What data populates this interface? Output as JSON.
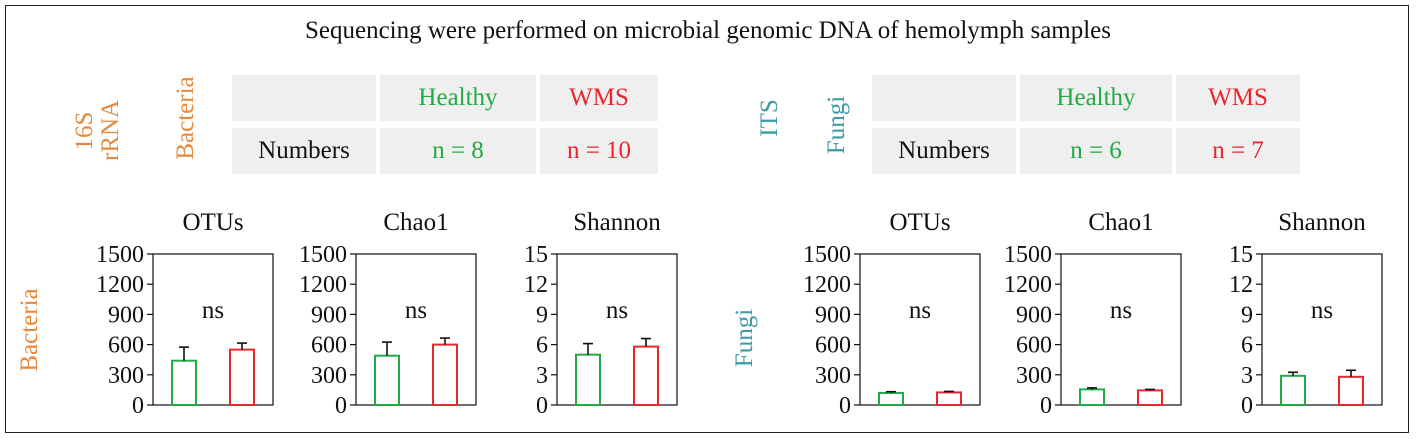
{
  "title": "Sequencing were performed on microbial genomic DNA of hemolymph samples",
  "colors": {
    "healthy": "#22aa44",
    "wms": "#e8262c",
    "bacteria": "#e8883a",
    "fungi": "#3a9aa6"
  },
  "tables": [
    {
      "gene": "16S rRNA",
      "kingdom": "Bacteria",
      "headers": [
        "",
        "Healthy",
        "WMS"
      ],
      "row_label": "Numbers",
      "healthy_n": "n = 8",
      "wms_n": "n = 10"
    },
    {
      "gene": "ITS",
      "kingdom": "Fungi",
      "headers": [
        "",
        "Healthy",
        "WMS"
      ],
      "row_label": "Numbers",
      "healthy_n": "n = 6",
      "wms_n": "n = 7"
    }
  ],
  "row_labels": {
    "bacteria": "Bacteria",
    "fungi": "Fungi"
  },
  "chart_data": [
    {
      "type": "bar",
      "group": "Bacteria",
      "title": "OTUs",
      "categories": [
        "Healthy",
        "WMS"
      ],
      "values": [
        440,
        550
      ],
      "errors": [
        135,
        65
      ],
      "ylim": [
        0,
        1500
      ],
      "yticks": [
        0,
        300,
        600,
        900,
        1200,
        1500
      ],
      "annotation": "ns"
    },
    {
      "type": "bar",
      "group": "Bacteria",
      "title": "Chao1",
      "categories": [
        "Healthy",
        "WMS"
      ],
      "values": [
        490,
        600
      ],
      "errors": [
        135,
        65
      ],
      "ylim": [
        0,
        1500
      ],
      "yticks": [
        0,
        300,
        600,
        900,
        1200,
        1500
      ],
      "annotation": "ns"
    },
    {
      "type": "bar",
      "group": "Bacteria",
      "title": "Shannon",
      "categories": [
        "Healthy",
        "WMS"
      ],
      "values": [
        5.0,
        5.8
      ],
      "errors": [
        1.1,
        0.8
      ],
      "ylim": [
        0,
        15
      ],
      "yticks": [
        0,
        3,
        6,
        9,
        12,
        15
      ],
      "annotation": "ns"
    },
    {
      "type": "bar",
      "group": "Fungi",
      "title": "OTUs",
      "categories": [
        "Healthy",
        "WMS"
      ],
      "values": [
        120,
        125
      ],
      "errors": [
        12,
        10
      ],
      "ylim": [
        0,
        1500
      ],
      "yticks": [
        0,
        300,
        600,
        900,
        1200,
        1500
      ],
      "annotation": "ns"
    },
    {
      "type": "bar",
      "group": "Fungi",
      "title": "Chao1",
      "categories": [
        "Healthy",
        "WMS"
      ],
      "values": [
        155,
        145
      ],
      "errors": [
        15,
        10
      ],
      "ylim": [
        0,
        1500
      ],
      "yticks": [
        0,
        300,
        600,
        900,
        1200,
        1500
      ],
      "annotation": "ns"
    },
    {
      "type": "bar",
      "group": "Fungi",
      "title": "Shannon",
      "categories": [
        "Healthy",
        "WMS"
      ],
      "values": [
        2.9,
        2.8
      ],
      "errors": [
        0.35,
        0.65
      ],
      "ylim": [
        0,
        15
      ],
      "yticks": [
        0,
        3,
        6,
        9,
        12,
        15
      ],
      "annotation": "ns"
    }
  ]
}
